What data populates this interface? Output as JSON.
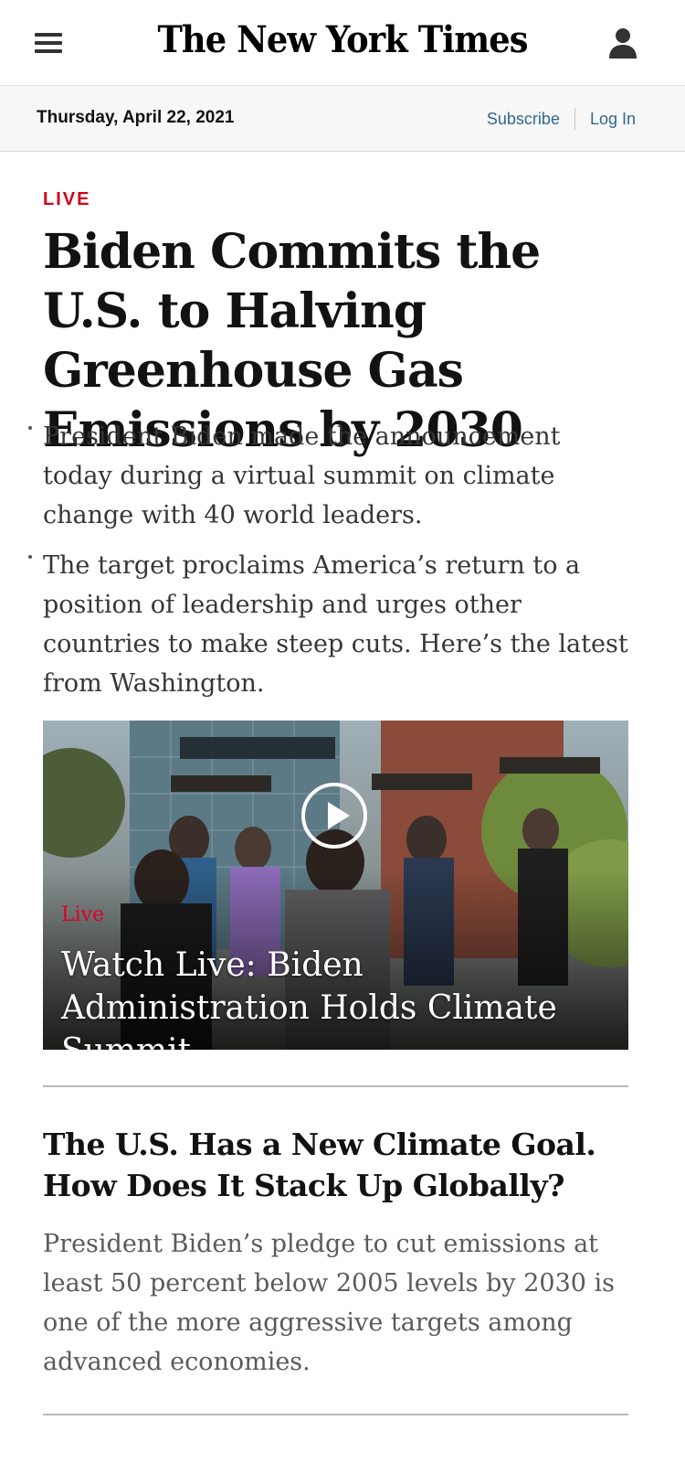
{
  "header": {
    "logo_text": "The New York Times",
    "menu_icon": "hamburger-menu-icon",
    "account_icon": "user-account-icon"
  },
  "datebar": {
    "date": "Thursday, April 22, 2021",
    "subscribe_label": "Subscribe",
    "login_label": "Log In"
  },
  "lead_story": {
    "kicker": "LIVE",
    "headline": "Biden Commits the U.S. to Halving Greenhouse Gas Emissions by 2030",
    "bullets": [
      "President Biden made the announcement today during a virtual summit on climate change with 40 world leaders.",
      "The target proclaims America’s return to a position of leadership and urges other countries to make steep cuts. Here’s the latest from Washington."
    ]
  },
  "video": {
    "live_label": "Live",
    "title": "Watch Live: Biden Administration Holds Climate Summit",
    "play_icon": "play-icon"
  },
  "story2": {
    "headline": "The U.S. Has a New Climate Goal. How Does It Stack Up Globally?",
    "summary": "President Biden’s pledge to cut emissions at least 50 percent below 2005 levels by 2030 is one of the more aggressive targets among advanced economies."
  },
  "colors": {
    "live_red": "#d0021b",
    "link_blue": "#326891",
    "datebar_bg": "#f7f7f7",
    "text": "#121212"
  }
}
